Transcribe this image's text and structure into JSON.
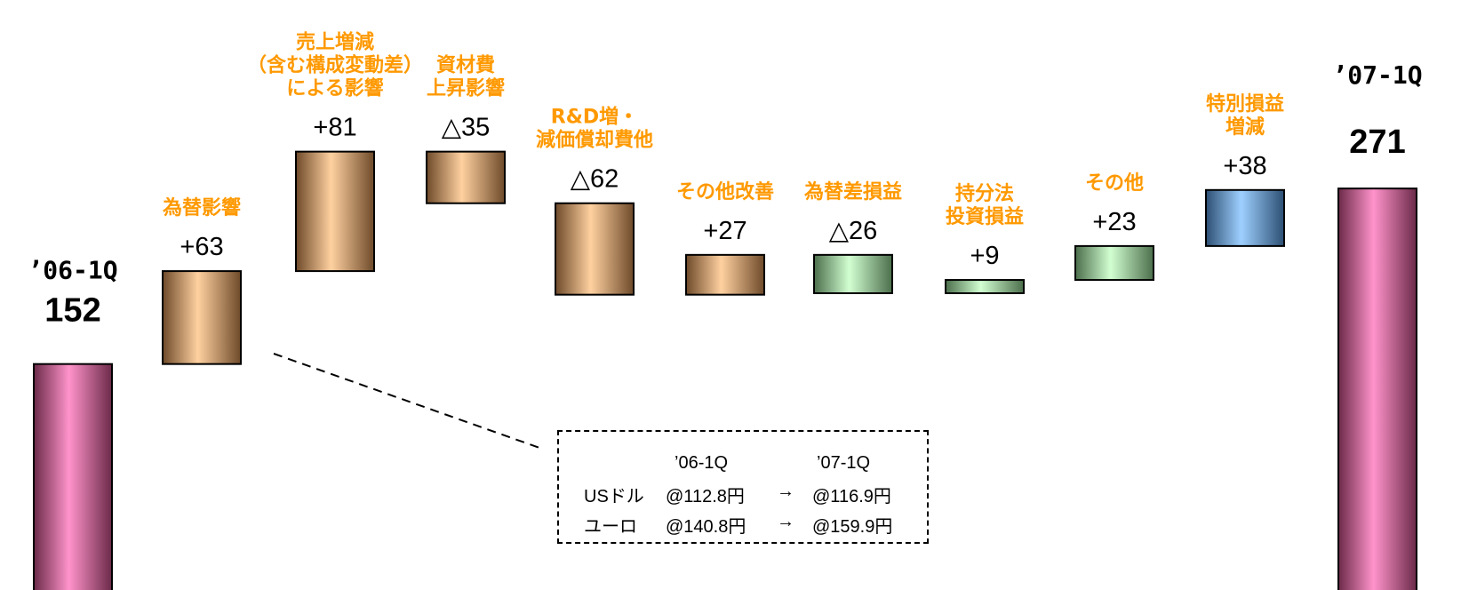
{
  "chart_data": {
    "type": "waterfall",
    "start": {
      "label": " 06-1Q",
      "label_text": "’06-1Q",
      "value": 152,
      "value_label": "152"
    },
    "end": {
      "label_text": "’07-1Q",
      "value": 271,
      "value_label": "271"
    },
    "steps": [
      {
        "category": [
          "為替影響"
        ],
        "value": 63,
        "value_label": "+63",
        "group": "orange"
      },
      {
        "category": [
          "売上増減",
          "（含む構成変動差）",
          "による影響"
        ],
        "value": 81,
        "value_label": "+81",
        "group": "orange"
      },
      {
        "category": [
          "資材費",
          "上昇影響"
        ],
        "value": -35,
        "value_label": "△35",
        "group": "orange"
      },
      {
        "category": [
          "R&D増・",
          "減価償却費他"
        ],
        "value": -62,
        "value_label": "△62",
        "group": "orange"
      },
      {
        "category": [
          "その他改善"
        ],
        "value": 27,
        "value_label": "+27",
        "group": "orange"
      },
      {
        "category": [
          "為替差損益"
        ],
        "value": -26,
        "value_label": "△26",
        "group": "green"
      },
      {
        "category": [
          "持分法",
          "投資損益"
        ],
        "value": 9,
        "value_label": "+9",
        "group": "green"
      },
      {
        "category": [
          "その他"
        ],
        "value": 23,
        "value_label": "+23",
        "group": "green"
      },
      {
        "category": [
          "特別損益",
          "増減"
        ],
        "value": 38,
        "value_label": "+38",
        "group": "blue"
      }
    ],
    "colors": {
      "total": "#ff8ec6",
      "orange": "#f9c995",
      "green": "#c6f2c6",
      "blue": "#8fc6f5",
      "category_text": "#ff9900"
    }
  },
  "rate_box": {
    "headers": [
      "’06-1Q",
      "’07-1Q"
    ],
    "rows": [
      {
        "currency": "USドル",
        "from": "@112.8円",
        "arrow": "→",
        "to": "@116.9円"
      },
      {
        "currency": "ユーロ",
        "from": "@140.8円",
        "arrow": "→",
        "to": "@159.9円"
      }
    ]
  }
}
